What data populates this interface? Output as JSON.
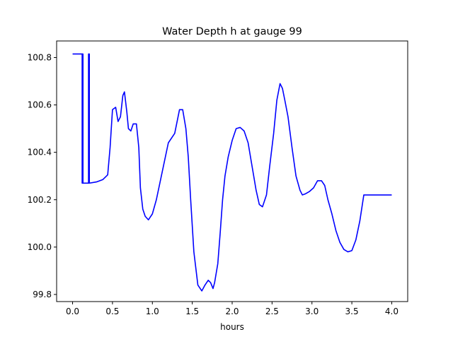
{
  "chart_data": {
    "type": "line",
    "title": "Water Depth h at gauge 99",
    "xlabel": "hours",
    "ylabel": "",
    "xlim": [
      -0.2,
      4.2
    ],
    "ylim": [
      99.77,
      100.87
    ],
    "xticks": [
      0.0,
      0.5,
      1.0,
      1.5,
      2.0,
      2.5,
      3.0,
      3.5,
      4.0
    ],
    "xtick_labels": [
      "0.0",
      "0.5",
      "1.0",
      "1.5",
      "2.0",
      "2.5",
      "3.0",
      "3.5",
      "4.0"
    ],
    "yticks": [
      99.8,
      100.0,
      100.2,
      100.4,
      100.6,
      100.8
    ],
    "ytick_labels": [
      "99.8",
      "100.0",
      "100.2",
      "100.4",
      "100.6",
      "100.8"
    ],
    "grid": false,
    "series": [
      {
        "name": "",
        "color": "#0000ff",
        "x": [
          0.0,
          0.12,
          0.12,
          0.125,
          0.125,
          0.13,
          0.13,
          0.2,
          0.2,
          0.21,
          0.21,
          0.2,
          0.2,
          0.21,
          0.21,
          0.3,
          0.38,
          0.44,
          0.47,
          0.5,
          0.54,
          0.57,
          0.6,
          0.63,
          0.65,
          0.68,
          0.7,
          0.73,
          0.76,
          0.8,
          0.83,
          0.85,
          0.88,
          0.91,
          0.95,
          1.0,
          1.05,
          1.1,
          1.15,
          1.2,
          1.28,
          1.34,
          1.38,
          1.42,
          1.45,
          1.48,
          1.52,
          1.57,
          1.62,
          1.66,
          1.7,
          1.73,
          1.76,
          1.78,
          1.82,
          1.85,
          1.88,
          1.91,
          1.95,
          2.0,
          2.05,
          2.1,
          2.15,
          2.2,
          2.24,
          2.27,
          2.3,
          2.34,
          2.38,
          2.43,
          2.47,
          2.52,
          2.56,
          2.6,
          2.63,
          2.66,
          2.7,
          2.75,
          2.8,
          2.85,
          2.88,
          2.92,
          2.97,
          3.02,
          3.07,
          3.12,
          3.16,
          3.2,
          3.25,
          3.3,
          3.35,
          3.4,
          3.45,
          3.5,
          3.55,
          3.6,
          3.65,
          3.7,
          3.75,
          3.8,
          3.85,
          3.9,
          3.95,
          4.0
        ],
        "y": [
          100.815,
          100.815,
          100.27,
          100.27,
          100.815,
          100.815,
          100.27,
          100.27,
          100.815,
          100.815,
          100.27,
          100.27,
          100.815,
          100.815,
          100.27,
          100.275,
          100.285,
          100.305,
          100.42,
          100.58,
          100.59,
          100.53,
          100.55,
          100.64,
          100.655,
          100.57,
          100.5,
          100.49,
          100.52,
          100.52,
          100.42,
          100.25,
          100.16,
          100.13,
          100.115,
          100.14,
          100.2,
          100.28,
          100.36,
          100.44,
          100.48,
          100.58,
          100.58,
          100.5,
          100.38,
          100.2,
          99.98,
          99.84,
          99.815,
          99.84,
          99.86,
          99.85,
          99.825,
          99.85,
          99.93,
          100.06,
          100.2,
          100.3,
          100.38,
          100.45,
          100.5,
          100.505,
          100.49,
          100.44,
          100.36,
          100.3,
          100.24,
          100.18,
          100.17,
          100.22,
          100.34,
          100.48,
          100.62,
          100.69,
          100.67,
          100.62,
          100.55,
          100.42,
          100.3,
          100.24,
          100.22,
          100.225,
          100.235,
          100.25,
          100.28,
          100.28,
          100.26,
          100.2,
          100.14,
          100.07,
          100.02,
          99.99,
          99.98,
          99.985,
          100.03,
          100.11,
          100.22,
          100.22,
          100.22,
          100.22,
          100.22,
          100.22,
          100.22,
          100.22
        ]
      }
    ]
  }
}
